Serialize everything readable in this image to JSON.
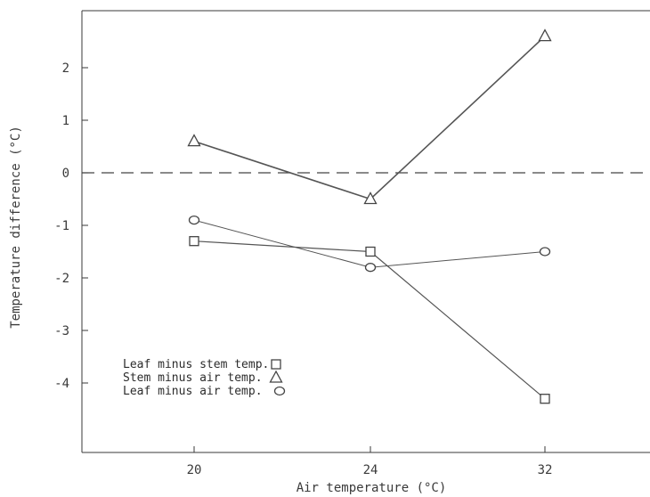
{
  "chart_data": {
    "type": "line",
    "xlabel": "Air temperature (°C)",
    "ylabel": "Temperature difference (°C)",
    "categories": [
      "20",
      "24",
      "32"
    ],
    "yticks": [
      "2",
      "1",
      "0",
      "-1",
      "-2",
      "-3",
      "-4"
    ],
    "ylim": [
      -5.3,
      3.0
    ],
    "reference_line": {
      "y": 0,
      "style": "dashed"
    },
    "grid": false,
    "legend_position": "lower-left",
    "series": [
      {
        "name": "Leaf minus stem temp.",
        "marker": "square",
        "x": [
          20,
          24,
          32
        ],
        "values": [
          -1.3,
          -1.5,
          -4.3
        ]
      },
      {
        "name": "Stem minus air temp.",
        "marker": "triangle",
        "x": [
          20,
          24,
          32
        ],
        "values": [
          0.6,
          -0.5,
          2.6
        ]
      },
      {
        "name": "Leaf minus air temp.",
        "marker": "circle",
        "x": [
          20,
          24,
          32
        ],
        "values": [
          -0.9,
          -1.8,
          -1.5
        ]
      }
    ],
    "colors": {
      "axis": "#3a3a3a",
      "line": "#555555",
      "marker": "#444444"
    }
  }
}
